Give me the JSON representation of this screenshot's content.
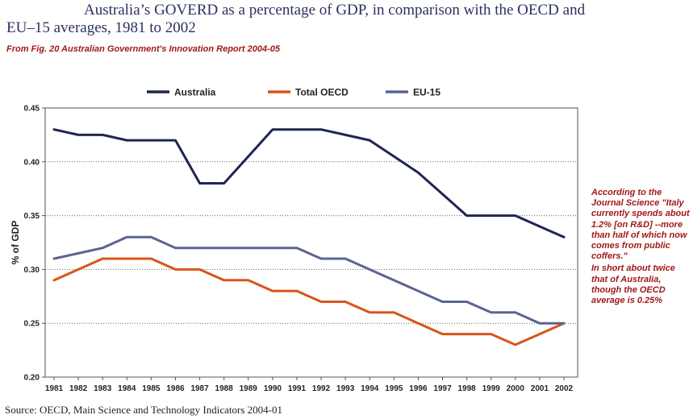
{
  "page": {
    "title_line1": "Australia’s GOVERD as a percentage of GDP, in comparison with the OECD and",
    "title_line2": "EU–15 averages, 1981 to 2002",
    "subtitle": "From Fig. 20 Australian Government's Innovation Report 2004-05",
    "source": "Source: OECD, Main Science and Technology Indicators 2004-01",
    "note_p1": "According to the Journal Science \"Italy currently spends about 1.2% [on R&D] --more than half of which now comes from public coffers.\"",
    "note_p2": "In short about twice that of Australia, though the OECD average is 0.25%"
  },
  "chart_data": {
    "type": "line",
    "title": "Australia’s GOVERD as a percentage of GDP, in comparison with the OECD and EU–15 averages, 1981 to 2002",
    "xlabel": "",
    "ylabel": "% of GDP",
    "ylim": [
      0.2,
      0.45
    ],
    "yticks": [
      "0.20",
      "0.25",
      "0.30",
      "0.35",
      "0.40",
      "0.45"
    ],
    "ytick_values": [
      0.2,
      0.25,
      0.3,
      0.35,
      0.4,
      0.45
    ],
    "grid": "horizontal dotted",
    "legend": "top",
    "x": [
      "1981",
      "1982",
      "1983",
      "1984",
      "1985",
      "1986",
      "1987",
      "1988",
      "1989",
      "1990",
      "1991",
      "1992",
      "1993",
      "1994",
      "1995",
      "1996",
      "1997",
      "1998",
      "1999",
      "2000",
      "2001",
      "2002"
    ],
    "series": [
      {
        "name": "Australia",
        "color": "#1e2651",
        "values": [
          0.43,
          0.425,
          0.425,
          0.42,
          0.42,
          0.42,
          0.38,
          0.38,
          0.405,
          0.43,
          0.43,
          0.43,
          0.425,
          0.42,
          0.405,
          0.39,
          0.37,
          0.35,
          0.35,
          0.35,
          0.34,
          0.33
        ]
      },
      {
        "name": "Total OECD",
        "color": "#d9541a",
        "values": [
          0.29,
          0.3,
          0.31,
          0.31,
          0.31,
          0.3,
          0.3,
          0.29,
          0.29,
          0.28,
          0.28,
          0.27,
          0.27,
          0.26,
          0.26,
          0.25,
          0.24,
          0.24,
          0.24,
          0.23,
          0.24,
          0.25
        ]
      },
      {
        "name": "EU-15",
        "color": "#5c6490",
        "values": [
          0.31,
          0.315,
          0.32,
          0.33,
          0.33,
          0.32,
          0.32,
          0.32,
          0.32,
          0.32,
          0.32,
          0.31,
          0.31,
          0.3,
          0.29,
          0.28,
          0.27,
          0.27,
          0.26,
          0.26,
          0.25,
          0.25
        ]
      }
    ]
  }
}
